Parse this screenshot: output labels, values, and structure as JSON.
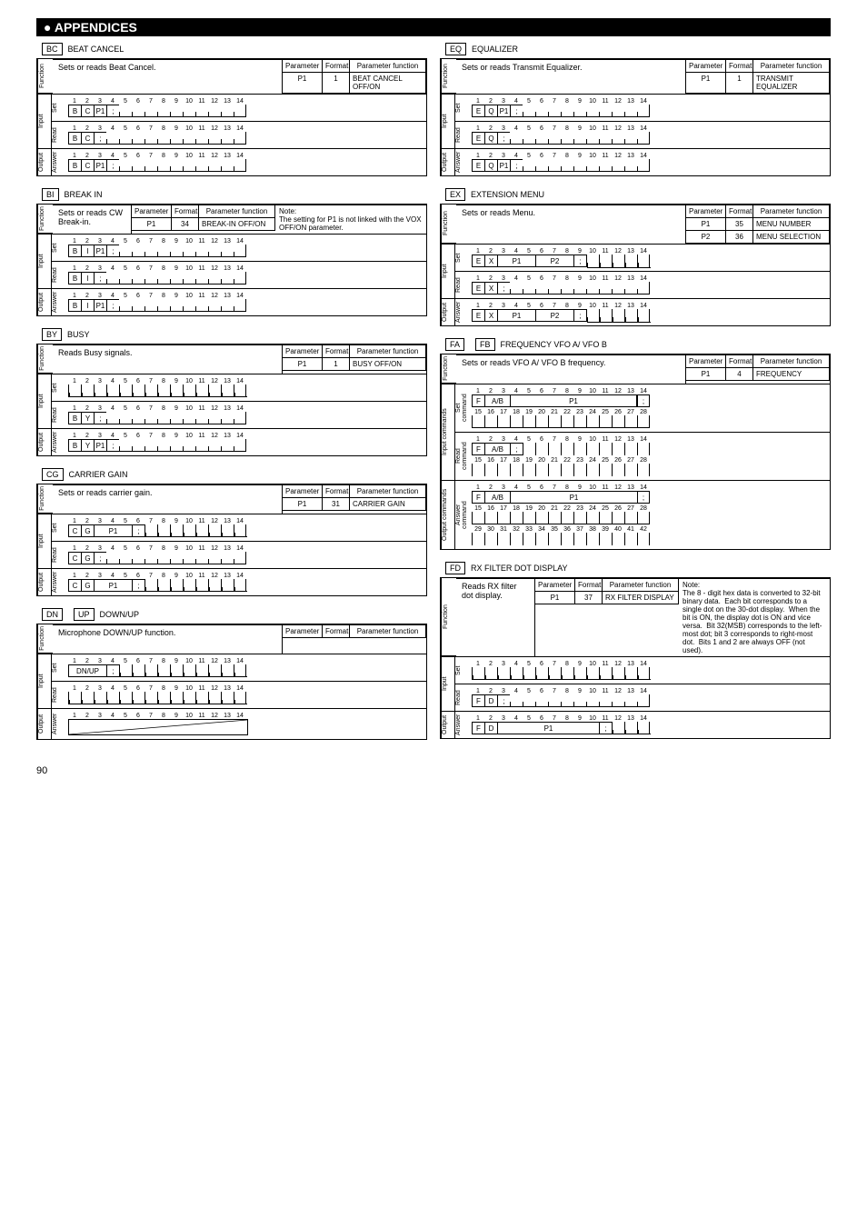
{
  "page_number": "90",
  "header_bullet": "●",
  "header_title": "APPENDICES",
  "param_headers": {
    "p": "Parameter",
    "f": "Format",
    "pf": "Parameter function"
  },
  "io_labels": {
    "function": "Function",
    "input": "Input",
    "output": "Output",
    "set": "Set",
    "read": "Read",
    "answer": "Answer",
    "set_cmd": "Set\ncommand",
    "read_cmd": "Read\ncommand",
    "answer_cmd": "Answer\ncommand",
    "input_cmd": "Input commands",
    "output_cmd": "Output commands"
  },
  "commands": {
    "BC": {
      "code": "BC",
      "name": "BEAT CANCEL",
      "desc": "Sets or reads Beat Cancel.",
      "params": [
        {
          "p": "P1",
          "f": "1",
          "pf": "BEAT CANCEL OFF/ON"
        }
      ],
      "set": [
        "B",
        "C",
        "P1",
        ";"
      ],
      "read": [
        "B",
        "C",
        ";"
      ],
      "answer": [
        "B",
        "C",
        "P1",
        ";"
      ],
      "cols": 14
    },
    "BI": {
      "code": "BI",
      "name": "BREAK IN",
      "desc": "Sets or reads CW Break-in.",
      "params": [
        {
          "p": "P1",
          "f": "34",
          "pf": "BREAK-IN OFF/ON"
        }
      ],
      "note": "Note:\nThe setting for P1 is not linked with the VOX OFF/ON parameter.",
      "set": [
        "B",
        "I",
        "P1",
        ";"
      ],
      "read": [
        "B",
        "I",
        ";"
      ],
      "answer": [
        "B",
        "I",
        "P1",
        ";"
      ],
      "cols": 14
    },
    "BY": {
      "code": "BY",
      "name": "BUSY",
      "desc": "Reads Busy signals.",
      "params": [
        {
          "p": "P1",
          "f": "1",
          "pf": "BUSY OFF/ON"
        }
      ],
      "set": [],
      "read": [
        "B",
        "Y",
        ";"
      ],
      "answer": [
        "B",
        "Y",
        "P1",
        ";"
      ],
      "cols": 14
    },
    "CG": {
      "code": "CG",
      "name": "CARRIER GAIN",
      "desc": "Sets or reads carrier gain.",
      "params": [
        {
          "p": "P1",
          "f": "31",
          "pf": "CARRIER GAIN"
        }
      ],
      "set": [
        "C",
        "G",
        "",
        "P1",
        "",
        ";"
      ],
      "read": [
        "C",
        "G",
        ";"
      ],
      "answer": [
        "C",
        "G",
        "",
        "P1",
        "",
        ";"
      ],
      "cols": 14,
      "p1span": 3
    },
    "DN": {
      "code": "DN",
      "code2": "UP",
      "name": "DOWN/UP",
      "desc": "Microphone DOWN/UP function.",
      "params": [],
      "set": [
        "DN/UP",
        ";"
      ],
      "read": [],
      "answer": [],
      "cols": 14,
      "diag": true
    },
    "EQ": {
      "code": "EQ",
      "name": "EQUALIZER",
      "desc": "Sets or reads Transmit Equalizer.",
      "params": [
        {
          "p": "P1",
          "f": "1",
          "pf": "TRANSMIT EQUALIZER"
        }
      ],
      "set": [
        "E",
        "Q",
        "P1",
        ";"
      ],
      "read": [
        "E",
        "Q",
        ";"
      ],
      "answer": [
        "E",
        "Q",
        "P1",
        ";"
      ],
      "cols": 14
    },
    "EX": {
      "code": "EX",
      "name": "EXTENSION MENU",
      "desc": "Sets or reads Menu.",
      "params": [
        {
          "p": "P1",
          "f": "35",
          "pf": "MENU NUMBER"
        },
        {
          "p": "P2",
          "f": "36",
          "pf": "MENU SELECTION"
        }
      ],
      "set": [
        "E",
        "X",
        "",
        "P1",
        "",
        "",
        "P2",
        "",
        ";"
      ],
      "read": [
        "E",
        "X",
        ";"
      ],
      "answer": [
        "E",
        "X",
        "",
        "P1",
        "",
        "",
        "P2",
        "",
        ";"
      ],
      "cols": 14
    },
    "FA": {
      "code": "FA",
      "code2": "FB",
      "name": "FREQUENCY VFO A/ VFO B",
      "desc": "Sets or reads VFO A/ VFO B frequency.",
      "params": [
        {
          "p": "P1",
          "f": "4",
          "pf": "FREQUENCY"
        }
      ],
      "cols": 14,
      "long": true
    },
    "FD": {
      "code": "FD",
      "name": "RX FILTER DOT DISPLAY",
      "desc": "Reads RX filter dot display.",
      "params": [
        {
          "p": "P1",
          "f": "37",
          "pf": "RX FILTER DISPLAY"
        }
      ],
      "note": "Note:\nThe 8 - digit hex data is converted to 32-bit binary data.  Each bit corresponds to a single dot on the 30-dot display.  When the bit is ON, the display dot is ON and vice versa.  Bit 32(MSB) corresponds to the left-most dot; bit 3 corresponds to right-most dot.  Bits 1 and 2 are always OFF (not used).",
      "set": [],
      "read": [
        "F",
        "D",
        ";"
      ],
      "answer": [
        "F",
        "D",
        "",
        "",
        "",
        "P1",
        "",
        "",
        "",
        "",
        ";"
      ],
      "cols": 14
    }
  }
}
